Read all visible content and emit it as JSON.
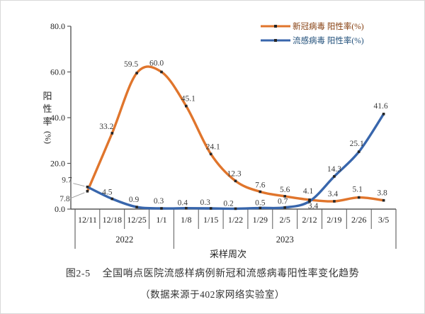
{
  "figure": {
    "caption_no": "图2-5",
    "caption_title": "全国哨点医院流感样病例新冠和流感病毒阳性率变化趋势",
    "caption_source": "（数据来源于402家网络实验室）"
  },
  "chart_data": {
    "type": "line",
    "title": "图2-5 全国哨点医院流感样病例新冠和流感病毒阳性率变化趋势",
    "xlabel": "采样周次",
    "ylabel": "阳性率",
    "ylabel_unit": "(%)",
    "ylim": [
      0,
      80
    ],
    "ytick_labels": [
      "0.0",
      "20.0",
      "40.0",
      "60.0",
      "80.0"
    ],
    "grid": false,
    "legend_position": "top-right",
    "categories": [
      "12/11",
      "12/18",
      "12/25",
      "1/1",
      "1/8",
      "1/15",
      "1/22",
      "1/29",
      "2/5",
      "2/12",
      "2/19",
      "2/26",
      "3/5"
    ],
    "year_groups": [
      {
        "label": "2022",
        "count": 4
      },
      {
        "label": "2023",
        "count": 9
      }
    ],
    "series": [
      {
        "name": "新冠病毒 阳性率(%)",
        "color": "#E0752C",
        "name_color": "#843C0C",
        "marker_color": "#262626",
        "values": [
          7.8,
          33.2,
          59.5,
          60.0,
          45.1,
          24.1,
          12.3,
          7.6,
          5.6,
          4.1,
          3.4,
          5.1,
          3.8
        ],
        "labels": [
          "7.8",
          "33.2",
          "59.5",
          "60.0",
          "45.1",
          "24.1",
          "12.3",
          "7.6",
          "5.6",
          "4.1",
          "3.4",
          "5.1",
          "3.8"
        ]
      },
      {
        "name": "流感病毒 阳性率(%)",
        "color": "#3866AC",
        "name_color": "#1F4E79",
        "marker_color": "#262626",
        "values": [
          9.7,
          4.5,
          0.9,
          0.3,
          0.4,
          0.3,
          0.2,
          0.5,
          0.7,
          3.4,
          14.3,
          25.1,
          41.6
        ],
        "labels": [
          "9.7",
          "4.5",
          "0.9",
          "0.3",
          "0.4",
          "0.3",
          "0.2",
          "0.5",
          "0.7",
          "3.4",
          "14.3",
          "25.1",
          "41.6"
        ]
      }
    ],
    "label_text_color": "#3a3a3a",
    "axis_color": "#595959"
  }
}
